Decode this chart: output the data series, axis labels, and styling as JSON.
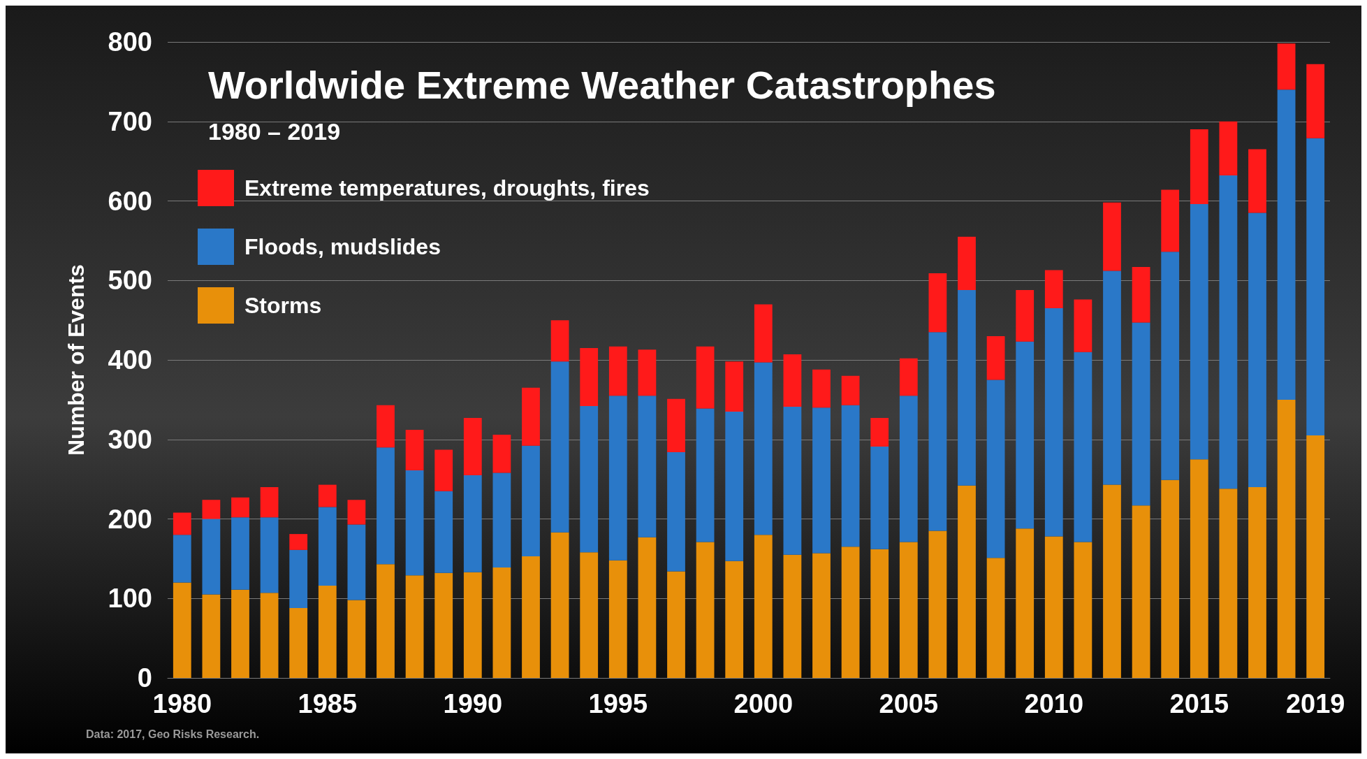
{
  "chart_data": {
    "type": "bar",
    "title": "Worldwide Extreme Weather Catastrophes",
    "subtitle": "1980 – 2019",
    "ylabel": "Number of Events",
    "annotations": [
      "Data: 2017, Geo Risks Research."
    ],
    "categories": [
      "1980",
      null,
      null,
      null,
      null,
      "1985",
      null,
      null,
      null,
      null,
      "1990",
      null,
      null,
      null,
      null,
      "1995",
      null,
      null,
      null,
      null,
      "2000",
      null,
      null,
      null,
      null,
      "2005",
      null,
      null,
      null,
      null,
      "2010",
      null,
      null,
      null,
      null,
      "2015",
      null,
      null,
      null,
      "2019"
    ],
    "stacked": true,
    "ylim": [
      0,
      800
    ],
    "yticks": [
      0,
      100,
      200,
      300,
      400,
      500,
      600,
      700,
      800
    ],
    "grid": "y",
    "legend": "top left",
    "series": [
      {
        "name": "Storms",
        "color": "#e8900a",
        "values": [
          120,
          105,
          111,
          107,
          88,
          116,
          98,
          143,
          129,
          132,
          133,
          139,
          153,
          183,
          158,
          148,
          177,
          134,
          171,
          147,
          180,
          155,
          157,
          165,
          162,
          171,
          185,
          242,
          151,
          188,
          178,
          171,
          243,
          217,
          249,
          275,
          238,
          240,
          350,
          305
        ]
      },
      {
        "name": "Floods, mudslides",
        "color": "#2a78c8",
        "values": [
          60,
          95,
          91,
          95,
          73,
          99,
          95,
          147,
          132,
          103,
          122,
          119,
          139,
          215,
          184,
          207,
          178,
          150,
          168,
          188,
          217,
          186,
          183,
          178,
          129,
          184,
          250,
          246,
          224,
          235,
          287,
          239,
          269,
          230,
          287,
          321,
          394,
          345,
          390,
          374
        ]
      },
      {
        "name": "Extreme temperatures, droughts, fires",
        "color": "#ff1a1a",
        "values": [
          28,
          24,
          25,
          38,
          20,
          28,
          31,
          53,
          51,
          52,
          72,
          48,
          73,
          52,
          73,
          62,
          58,
          67,
          78,
          63,
          73,
          66,
          48,
          37,
          36,
          47,
          74,
          67,
          55,
          65,
          48,
          66,
          86,
          70,
          78,
          94,
          68,
          80,
          58,
          93
        ]
      }
    ]
  }
}
